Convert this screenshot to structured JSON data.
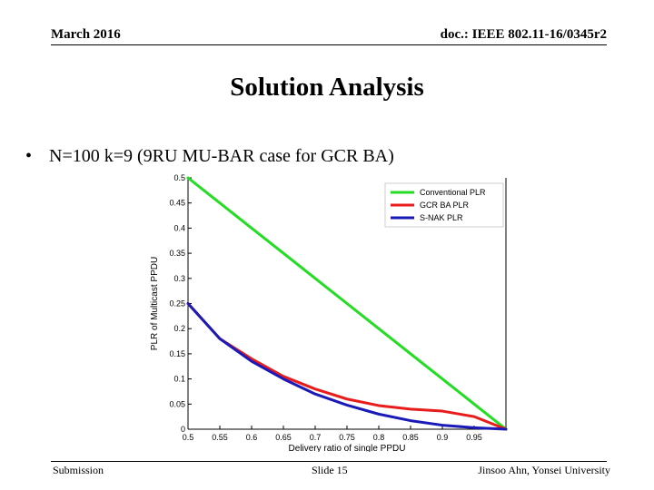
{
  "header": {
    "date": "March 2016",
    "doc": "doc.: IEEE 802.11-16/0345r2"
  },
  "title": "Solution Analysis",
  "bullet": {
    "symbol": "•",
    "text": "N=100 k=9 (9RU MU-BAR case for GCR BA)"
  },
  "footer": {
    "left": "Submission",
    "center": "Slide 15",
    "right": "Jinsoo Ahn, Yonsei University"
  },
  "chart_data": {
    "type": "line",
    "xlabel": "Delivery ratio of single PPDU",
    "ylabel": "PLR of Multicast PPDU",
    "xlim": [
      0.5,
      1.0
    ],
    "ylim": [
      0,
      0.5
    ],
    "xticks": [
      "0.5",
      "0.55",
      "0.6",
      "0.65",
      "0.7",
      "0.75",
      "0.8",
      "0.85",
      "0.9",
      "0.95"
    ],
    "xtick_values": [
      0.5,
      0.55,
      0.6,
      0.65,
      0.7,
      0.75,
      0.8,
      0.85,
      0.9,
      0.95
    ],
    "yticks": [
      "0",
      "0.05",
      "0.1",
      "0.15",
      "0.2",
      "0.25",
      "0.3",
      "0.35",
      "0.4",
      "0.45",
      "0.5"
    ],
    "ytick_values": [
      0,
      0.05,
      0.1,
      0.15,
      0.2,
      0.25,
      0.3,
      0.35,
      0.4,
      0.45,
      0.5
    ],
    "legend_position": "top-right",
    "x": [
      0.5,
      0.55,
      0.6,
      0.65,
      0.7,
      0.75,
      0.8,
      0.85,
      0.9,
      0.95,
      1.0
    ],
    "series": [
      {
        "name": "Conventional PLR",
        "color": "#22dd22",
        "values": [
          0.5,
          0.45,
          0.4,
          0.35,
          0.3,
          0.25,
          0.2,
          0.15,
          0.1,
          0.05,
          0.0
        ]
      },
      {
        "name": "GCR BA PLR",
        "color": "#e81c1c",
        "values": [
          0.25,
          0.18,
          0.14,
          0.105,
          0.08,
          0.06,
          0.047,
          0.04,
          0.036,
          0.025,
          0.0
        ]
      },
      {
        "name": "S-NAK PLR",
        "color": "#1a1ab8",
        "values": [
          0.25,
          0.18,
          0.135,
          0.1,
          0.07,
          0.048,
          0.03,
          0.017,
          0.008,
          0.003,
          0.0
        ]
      }
    ]
  }
}
